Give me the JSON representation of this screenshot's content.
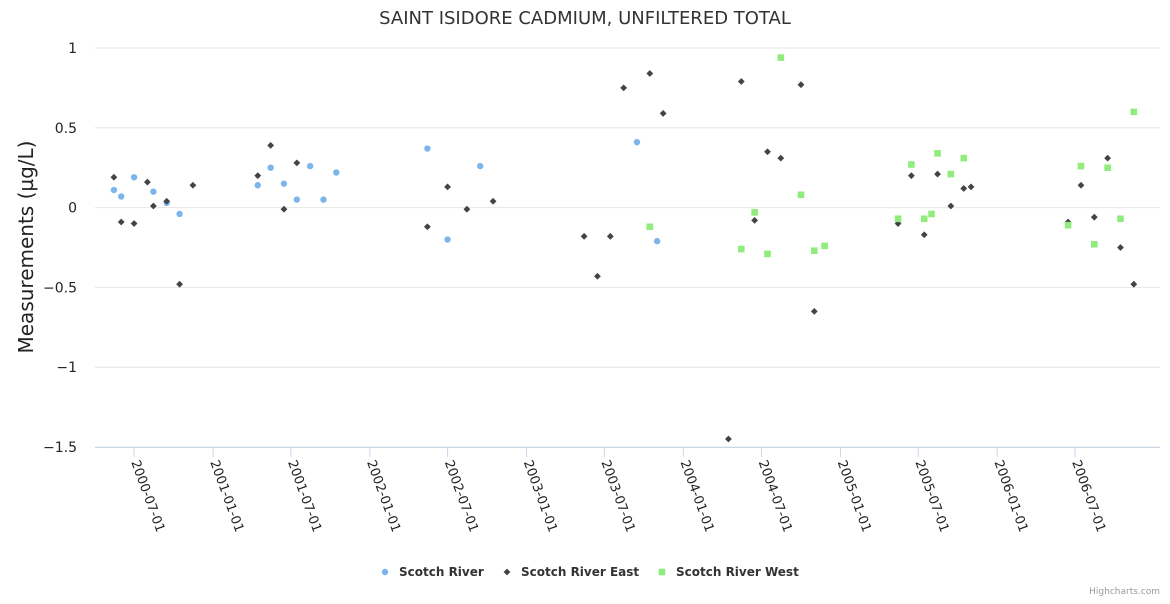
{
  "chart_data": {
    "type": "scatter",
    "title": "SAINT ISIDORE CADMIUM, UNFILTERED TOTAL",
    "ylabel": "Measurements (µg/L)",
    "xlabel": "",
    "ylim": [
      -1.5,
      1
    ],
    "yticks": [
      1,
      0.5,
      0,
      -0.5,
      -1,
      -1.5
    ],
    "ytick_labels": [
      "1",
      "0.5",
      "0",
      "−0.5",
      "−1",
      "−1.5"
    ],
    "xlim": [
      "2000-04-01",
      "2007-01-15"
    ],
    "xticks": [
      "2000-07-01",
      "2001-01-01",
      "2001-07-01",
      "2002-01-01",
      "2002-07-01",
      "2003-01-01",
      "2003-07-01",
      "2004-01-01",
      "2004-07-01",
      "2005-01-01",
      "2005-07-01",
      "2006-01-01",
      "2006-07-01"
    ],
    "grid": "horizontal",
    "legend": "bottom-center",
    "series": [
      {
        "name": "Scotch River",
        "color": "#7cb5ec",
        "marker": "circle",
        "points": [
          [
            "2000-05-15",
            0.11
          ],
          [
            "2000-06-01",
            0.07
          ],
          [
            "2000-07-01",
            0.19
          ],
          [
            "2000-08-15",
            0.1
          ],
          [
            "2000-09-15",
            0.03
          ],
          [
            "2000-10-15",
            -0.04
          ],
          [
            "2001-04-15",
            0.14
          ],
          [
            "2001-05-15",
            0.25
          ],
          [
            "2001-06-15",
            0.15
          ],
          [
            "2001-07-15",
            0.05
          ],
          [
            "2001-08-15",
            0.26
          ],
          [
            "2001-09-15",
            0.05
          ],
          [
            "2001-10-15",
            0.22
          ],
          [
            "2002-05-15",
            0.37
          ],
          [
            "2002-07-01",
            -0.2
          ],
          [
            "2002-09-15",
            0.26
          ],
          [
            "2003-09-15",
            0.41
          ],
          [
            "2003-11-01",
            -0.21
          ]
        ]
      },
      {
        "name": "Scotch River East",
        "color": "#434348",
        "marker": "diamond",
        "points": [
          [
            "2000-05-15",
            0.19
          ],
          [
            "2000-06-01",
            -0.09
          ],
          [
            "2000-07-01",
            -0.1
          ],
          [
            "2000-08-01",
            0.16
          ],
          [
            "2000-08-15",
            0.01
          ],
          [
            "2000-09-15",
            0.04
          ],
          [
            "2000-10-15",
            -0.48
          ],
          [
            "2000-11-15",
            0.14
          ],
          [
            "2001-04-15",
            0.2
          ],
          [
            "2001-05-15",
            0.39
          ],
          [
            "2001-06-15",
            -0.01
          ],
          [
            "2001-07-15",
            0.28
          ],
          [
            "2002-05-15",
            -0.12
          ],
          [
            "2002-07-01",
            0.13
          ],
          [
            "2002-08-15",
            -0.01
          ],
          [
            "2002-10-15",
            0.04
          ],
          [
            "2003-05-15",
            -0.18
          ],
          [
            "2003-06-15",
            -0.43
          ],
          [
            "2003-07-15",
            -0.18
          ],
          [
            "2003-08-15",
            0.75
          ],
          [
            "2003-10-15",
            0.84
          ],
          [
            "2003-11-15",
            0.59
          ],
          [
            "2004-04-15",
            -1.45
          ],
          [
            "2004-05-15",
            0.79
          ],
          [
            "2004-06-15",
            -0.08
          ],
          [
            "2004-07-15",
            0.35
          ],
          [
            "2004-08-15",
            0.31
          ],
          [
            "2004-10-01",
            0.77
          ],
          [
            "2004-11-01",
            -0.65
          ],
          [
            "2005-05-15",
            -0.1
          ],
          [
            "2005-06-15",
            0.2
          ],
          [
            "2005-07-15",
            -0.17
          ],
          [
            "2005-08-15",
            0.21
          ],
          [
            "2005-09-15",
            0.01
          ],
          [
            "2005-10-15",
            0.12
          ],
          [
            "2005-11-01",
            0.13
          ],
          [
            "2006-06-15",
            -0.09
          ],
          [
            "2006-07-15",
            0.14
          ],
          [
            "2006-08-15",
            -0.06
          ],
          [
            "2006-09-15",
            0.31
          ],
          [
            "2006-10-15",
            -0.25
          ],
          [
            "2006-11-15",
            -0.48
          ]
        ]
      },
      {
        "name": "Scotch River West",
        "color": "#90ed7d",
        "marker": "square",
        "points": [
          [
            "2003-10-15",
            -0.12
          ],
          [
            "2004-05-15",
            -0.26
          ],
          [
            "2004-06-15",
            -0.03
          ],
          [
            "2004-07-15",
            -0.29
          ],
          [
            "2004-08-15",
            0.94
          ],
          [
            "2004-10-01",
            0.08
          ],
          [
            "2004-11-01",
            -0.27
          ],
          [
            "2004-11-25",
            -0.24
          ],
          [
            "2005-05-15",
            -0.07
          ],
          [
            "2005-06-15",
            0.27
          ],
          [
            "2005-07-15",
            -0.07
          ],
          [
            "2005-08-01",
            -0.04
          ],
          [
            "2005-08-15",
            0.34
          ],
          [
            "2005-09-15",
            0.21
          ],
          [
            "2005-10-15",
            0.31
          ],
          [
            "2006-06-15",
            -0.11
          ],
          [
            "2006-07-15",
            0.26
          ],
          [
            "2006-08-15",
            -0.23
          ],
          [
            "2006-09-15",
            0.25
          ],
          [
            "2006-10-15",
            -0.07
          ],
          [
            "2006-11-15",
            0.6
          ]
        ]
      }
    ],
    "credits": "Highcharts.com"
  }
}
